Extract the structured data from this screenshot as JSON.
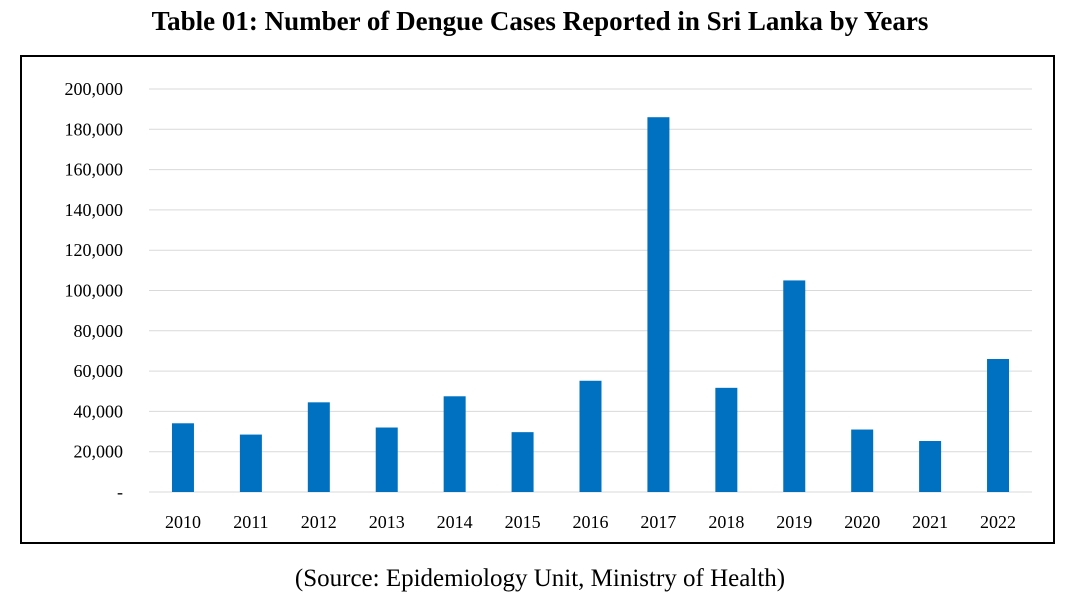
{
  "title": "Table 01: Number of Dengue Cases Reported in Sri Lanka by Years",
  "source": "(Source: Epidemiology Unit, Ministry of Health)",
  "chart_data": {
    "type": "bar",
    "title": "Table 01: Number of Dengue Cases Reported in Sri Lanka by Years",
    "xlabel": "",
    "ylabel": "",
    "categories": [
      "2010",
      "2011",
      "2012",
      "2013",
      "2014",
      "2015",
      "2016",
      "2017",
      "2018",
      "2019",
      "2020",
      "2021",
      "2022"
    ],
    "values": [
      34100,
      28500,
      44500,
      32000,
      47500,
      29700,
      55200,
      186000,
      51700,
      105000,
      31000,
      25300,
      66000
    ],
    "ylim": [
      0,
      200000
    ],
    "yticks": [
      0,
      20000,
      40000,
      60000,
      80000,
      100000,
      120000,
      140000,
      160000,
      180000,
      200000
    ],
    "ytick_labels": [
      "-",
      "20,000",
      "40,000",
      "60,000",
      "80,000",
      "100,000",
      "120,000",
      "140,000",
      "160,000",
      "180,000",
      "200,000"
    ],
    "grid": true,
    "legend": "none",
    "bar_color": "#0070C0",
    "grid_color": "#D9D9D9"
  }
}
